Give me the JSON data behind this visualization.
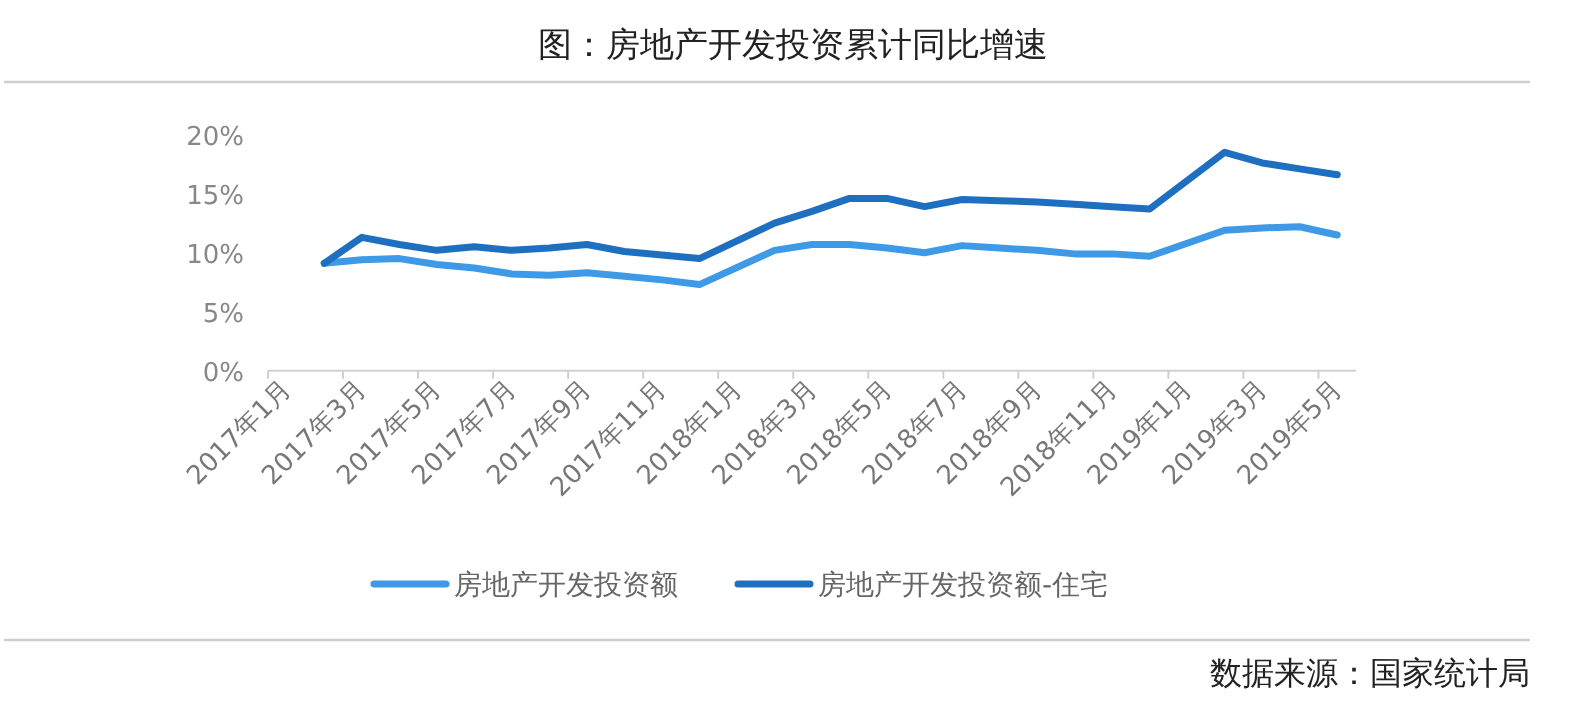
{
  "chart_data": {
    "type": "line",
    "title": "图：房地产开发投资累计同比增速",
    "categories": [
      "2017年1月",
      null,
      "2017年3月",
      null,
      "2017年5月",
      null,
      "2017年7月",
      null,
      "2017年9月",
      null,
      "2017年11月",
      null,
      "2018年1月",
      null,
      "2018年3月",
      null,
      "2018年5月",
      null,
      "2018年7月",
      null,
      "2018年9月",
      null,
      "2018年11月",
      null,
      "2019年1月",
      null,
      "2019年3月",
      null,
      "2019年5月"
    ],
    "series": [
      {
        "name": "房地产开发投资额",
        "color": "#3e9ae6",
        "values": [
          null,
          9.1,
          9.4,
          9.5,
          9.0,
          8.7,
          8.2,
          8.1,
          8.3,
          8.0,
          7.7,
          7.3,
          null,
          10.2,
          10.7,
          10.7,
          10.4,
          10.0,
          10.6,
          10.4,
          10.2,
          9.9,
          9.9,
          9.7,
          null,
          11.9,
          12.1,
          12.2,
          11.5
        ]
      },
      {
        "name": "房地产开发投资额-住宅",
        "color": "#1f6fc0",
        "values": [
          null,
          9.1,
          11.3,
          10.7,
          10.2,
          10.5,
          10.2,
          10.4,
          10.7,
          10.1,
          9.8,
          9.5,
          null,
          12.5,
          13.5,
          14.6,
          14.6,
          13.9,
          14.5,
          14.4,
          14.3,
          14.1,
          13.9,
          13.7,
          null,
          18.5,
          17.6,
          17.1,
          16.6
        ]
      }
    ],
    "ylim": [
      0,
      20
    ],
    "yticks": [
      {
        "value": 0,
        "label": "0%"
      },
      {
        "value": 5,
        "label": "5%"
      },
      {
        "value": 10,
        "label": "10%"
      },
      {
        "value": 15,
        "label": "15%"
      },
      {
        "value": 20,
        "label": "20%"
      }
    ],
    "legend": "bottom",
    "marker": "none",
    "line_style": "solid",
    "annotations": [
      "数据来源：国家统计局"
    ]
  }
}
